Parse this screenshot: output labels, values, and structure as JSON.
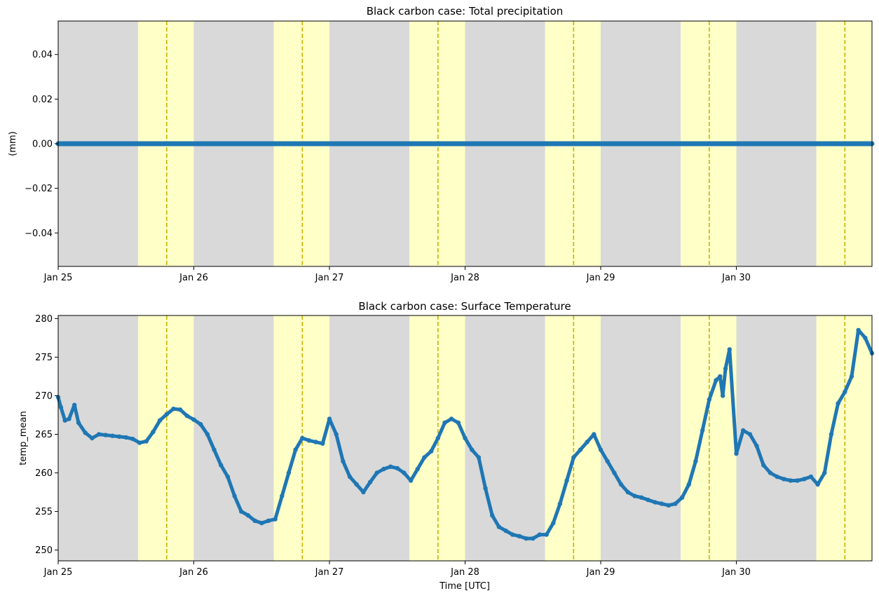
{
  "colors": {
    "night": "#d9d9d9",
    "day": "#ffffc8",
    "noon_line": "#c8b400",
    "series": "#1f77b4",
    "axis": "#000000"
  },
  "chart_data": [
    {
      "type": "line",
      "title": "Black carbon case: Total precipitation",
      "xlabel": "",
      "ylabel": "(mm)",
      "x_tick_labels": [
        "Jan 25",
        "Jan 26",
        "Jan 27",
        "Jan 28",
        "Jan 29",
        "Jan 30"
      ],
      "x_range_days": [
        25.0,
        31.0
      ],
      "ylim": [
        -0.055,
        0.055
      ],
      "y_ticks": [
        -0.04,
        -0.02,
        0.0,
        0.02,
        0.04
      ],
      "y_tick_labels": [
        "−0.04",
        "−0.02",
        "0.00",
        "0.02",
        "0.04"
      ],
      "grid": false,
      "series": [
        {
          "x": [
            25.0,
            31.0
          ],
          "values": [
            0.0,
            0.0
          ]
        }
      ]
    },
    {
      "type": "line",
      "title": "Black carbon case: Surface Temperature",
      "xlabel": "Time [UTC]",
      "ylabel": "temp_mean",
      "x_tick_labels": [
        "Jan 25",
        "Jan 26",
        "Jan 27",
        "Jan 28",
        "Jan 29",
        "Jan 30"
      ],
      "x_range_days": [
        25.0,
        31.0
      ],
      "ylim": [
        248.6,
        280.4
      ],
      "y_ticks": [
        250,
        255,
        260,
        265,
        270,
        275,
        280
      ],
      "y_tick_labels": [
        "250",
        "255",
        "260",
        "265",
        "270",
        "275",
        "280"
      ],
      "grid": false,
      "series": [
        {
          "x": [
            25.0,
            25.02,
            25.05,
            25.08,
            25.12,
            25.15,
            25.2,
            25.25,
            25.3,
            25.35,
            25.4,
            25.45,
            25.5,
            25.55,
            25.6,
            25.65,
            25.7,
            25.75,
            25.8,
            25.85,
            25.9,
            25.95,
            26.0,
            26.05,
            26.1,
            26.15,
            26.2,
            26.25,
            26.3,
            26.35,
            26.4,
            26.45,
            26.5,
            26.55,
            26.6,
            26.65,
            26.7,
            26.75,
            26.8,
            26.85,
            26.9,
            26.95,
            27.0,
            27.05,
            27.1,
            27.15,
            27.2,
            27.25,
            27.3,
            27.35,
            27.4,
            27.45,
            27.5,
            27.55,
            27.6,
            27.65,
            27.7,
            27.75,
            27.8,
            27.85,
            27.9,
            27.95,
            28.0,
            28.05,
            28.1,
            28.15,
            28.2,
            28.25,
            28.3,
            28.35,
            28.4,
            28.45,
            28.5,
            28.55,
            28.6,
            28.65,
            28.7,
            28.75,
            28.8,
            28.85,
            28.9,
            28.95,
            29.0,
            29.05,
            29.1,
            29.15,
            29.2,
            29.25,
            29.3,
            29.35,
            29.4,
            29.45,
            29.5,
            29.55,
            29.6,
            29.65,
            29.7,
            29.75,
            29.8,
            29.85,
            29.88,
            29.9,
            29.92,
            29.95,
            30.0,
            30.05,
            30.1,
            30.15,
            30.2,
            30.25,
            30.3,
            30.35,
            30.4,
            30.45,
            30.5,
            30.55,
            30.6,
            30.65,
            30.7,
            30.75,
            30.8,
            30.85,
            30.9,
            30.95,
            31.0
          ],
          "values": [
            269.8,
            268.5,
            266.8,
            267.0,
            268.8,
            266.5,
            265.2,
            264.5,
            265.0,
            264.9,
            264.8,
            264.7,
            264.6,
            264.4,
            263.9,
            264.1,
            265.3,
            266.8,
            267.6,
            268.3,
            268.2,
            267.4,
            266.9,
            266.3,
            265.0,
            263.0,
            261.0,
            259.5,
            257.0,
            255.0,
            254.5,
            253.8,
            253.5,
            253.8,
            254.0,
            257.0,
            260.0,
            263.0,
            264.5,
            264.2,
            264.0,
            263.8,
            267.0,
            265.0,
            261.5,
            259.5,
            258.5,
            257.5,
            258.8,
            260.0,
            260.5,
            260.8,
            260.6,
            260.0,
            259.0,
            260.5,
            262.0,
            262.8,
            264.5,
            266.5,
            267.0,
            266.5,
            264.5,
            263.0,
            262.0,
            258.0,
            254.5,
            253.0,
            252.5,
            252.0,
            251.8,
            251.5,
            251.5,
            252.0,
            252.0,
            253.5,
            256.0,
            259.0,
            262.0,
            263.0,
            264.0,
            265.0,
            263.0,
            261.5,
            260.0,
            258.5,
            257.5,
            257.0,
            256.8,
            256.5,
            256.2,
            256.0,
            255.8,
            256.0,
            256.8,
            258.5,
            261.5,
            265.5,
            269.5,
            272.0,
            272.5,
            270.0,
            273.5,
            276.0,
            262.5,
            265.5,
            265.0,
            263.5,
            261.0,
            260.0,
            259.5,
            259.2,
            259.0,
            259.0,
            259.2,
            259.5,
            258.5,
            260.0,
            265.0,
            269.0,
            270.5,
            272.5,
            278.5,
            277.5,
            275.5
          ]
        }
      ]
    }
  ]
}
